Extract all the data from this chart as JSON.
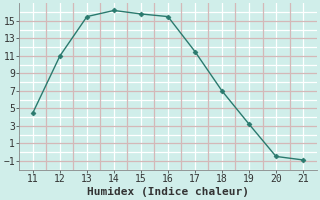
{
  "x": [
    11,
    12,
    13,
    14,
    15,
    16,
    17,
    18,
    19,
    20,
    21
  ],
  "y": [
    4.5,
    11.0,
    15.5,
    16.2,
    15.8,
    15.5,
    11.5,
    7.0,
    3.2,
    -0.5,
    -0.9
  ],
  "xlabel": "Humidex (Indice chaleur)",
  "line_color": "#2a7a6e",
  "marker_color": "#2a7a6e",
  "bg_color": "#d0eeea",
  "plot_bg_color": "#d0eeea",
  "grid_white": "#ffffff",
  "grid_pink": "#d4b8b8",
  "xlim": [
    10.5,
    21.5
  ],
  "ylim": [
    -2,
    17
  ],
  "xticks": [
    11,
    12,
    13,
    14,
    15,
    16,
    17,
    18,
    19,
    20,
    21
  ],
  "yticks": [
    -1,
    1,
    3,
    5,
    7,
    9,
    11,
    13,
    15
  ],
  "y_white_lines": [
    -2,
    0,
    2,
    4,
    6,
    8,
    10,
    12,
    14,
    16
  ],
  "y_pink_lines": [
    -1,
    1,
    3,
    5,
    7,
    9,
    11,
    13,
    15
  ],
  "x_white_lines": [
    11,
    12,
    13,
    14,
    15,
    16,
    17,
    18,
    19,
    20,
    21
  ],
  "x_pink_lines": [
    11.5,
    12.5,
    13.5,
    14.5,
    15.5,
    16.5,
    17.5,
    18.5,
    19.5,
    20.5
  ],
  "xlabel_fontsize": 8,
  "tick_fontsize": 7
}
